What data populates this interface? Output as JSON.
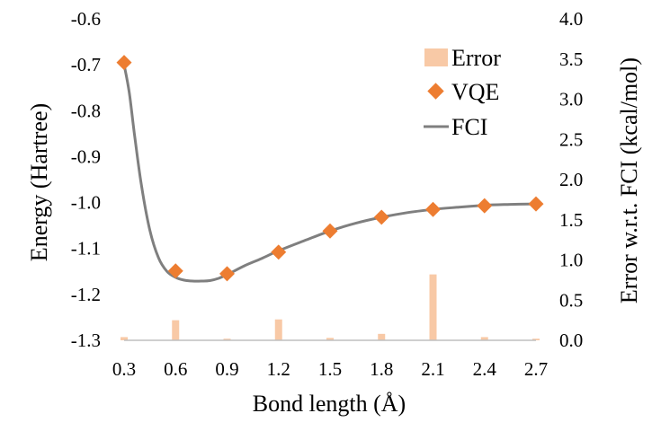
{
  "chart_data": {
    "type": "line",
    "xlabel": "Bond length (Å)",
    "ylabel": "Energy (Hartree)",
    "y2label": "Error w.r.t. FCI (kcal/mol)",
    "xlim": [
      0.3,
      2.7
    ],
    "ylim": [
      -1.3,
      -0.6
    ],
    "y2lim": [
      0.0,
      4.0
    ],
    "x_ticks": [
      "0.3",
      "0.6",
      "0.9",
      "1.2",
      "1.5",
      "1.8",
      "2.1",
      "2.4",
      "2.7"
    ],
    "y_ticks": [
      "-0.6",
      "-0.7",
      "-0.8",
      "-0.9",
      "-1.0",
      "-1.1",
      "-1.2",
      "-1.3"
    ],
    "y2_ticks": [
      "4.0",
      "3.5",
      "3.0",
      "2.5",
      "2.0",
      "1.5",
      "1.0",
      "0.5",
      "0.0"
    ],
    "x": [
      0.3,
      0.6,
      0.9,
      1.2,
      1.5,
      1.8,
      2.1,
      2.4,
      2.7
    ],
    "series": [
      {
        "name": "Error",
        "type": "bar",
        "axis": "right",
        "color": "#f8c9a6",
        "values": [
          0.04,
          0.25,
          0.02,
          0.26,
          0.03,
          0.08,
          0.82,
          0.04,
          0.02
        ]
      },
      {
        "name": "VQE",
        "type": "scatter",
        "axis": "left",
        "color": "#ed7d31",
        "values": [
          -0.695,
          -1.149,
          -1.155,
          -1.108,
          -1.062,
          -1.032,
          -1.015,
          -1.007,
          -1.003
        ]
      },
      {
        "name": "FCI",
        "type": "line",
        "axis": "left",
        "color": "#7f7f7f",
        "curve_x": [
          0.3,
          0.33,
          0.36,
          0.4,
          0.45,
          0.5,
          0.55,
          0.6,
          0.65,
          0.7,
          0.75,
          0.8,
          0.85,
          0.9,
          1.0,
          1.1,
          1.2,
          1.35,
          1.5,
          1.65,
          1.8,
          1.95,
          2.1,
          2.25,
          2.4,
          2.55,
          2.7
        ],
        "curve_y": [
          -0.7,
          -0.76,
          -0.85,
          -0.96,
          -1.06,
          -1.12,
          -1.15,
          -1.163,
          -1.169,
          -1.171,
          -1.171,
          -1.17,
          -1.165,
          -1.157,
          -1.138,
          -1.122,
          -1.105,
          -1.083,
          -1.062,
          -1.045,
          -1.032,
          -1.022,
          -1.015,
          -1.01,
          -1.006,
          -1.004,
          -1.003
        ]
      }
    ],
    "legend": {
      "position": "top-right",
      "entries": [
        "Error",
        "VQE",
        "FCI"
      ]
    }
  }
}
